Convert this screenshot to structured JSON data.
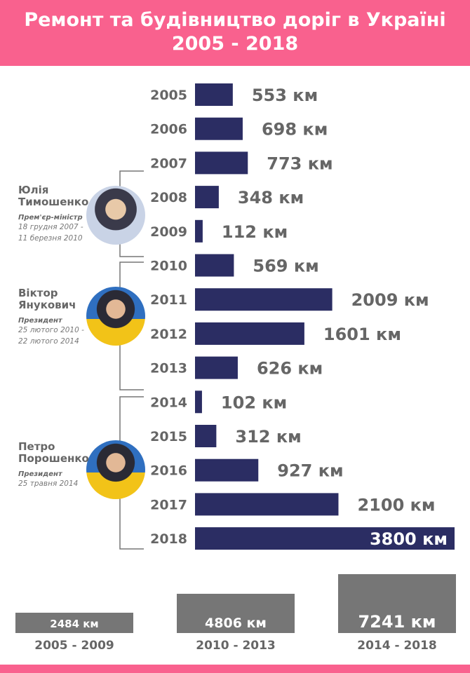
{
  "title": {
    "line1": "Ремонт та будівництво доріг в Україні",
    "line2": "2005 - 2018"
  },
  "unit": "км",
  "colors": {
    "bar": "#2b2d63",
    "header": "#f9618e",
    "summary": "#767676",
    "text": "#666666"
  },
  "chart_data": {
    "type": "bar",
    "orientation": "horizontal",
    "title": "Ремонт та будівництво доріг в Україні 2005 - 2018",
    "categories": [
      "2005",
      "2006",
      "2007",
      "2008",
      "2009",
      "2010",
      "2011",
      "2012",
      "2013",
      "2014",
      "2015",
      "2016",
      "2017",
      "2018"
    ],
    "values": [
      553,
      698,
      773,
      348,
      112,
      569,
      2009,
      1601,
      626,
      102,
      312,
      927,
      2100,
      3800
    ],
    "labels": [
      "553 км",
      "698 км",
      "773 км",
      "348 км",
      "112 км",
      "569 км",
      "2009 км",
      "1601 км",
      "626 км",
      "102 км",
      "312 км",
      "927 км",
      "2100 км",
      "3800 км"
    ],
    "xlim": [
      0,
      3800
    ],
    "summary": {
      "categories": [
        "2005 - 2009",
        "2010 - 2013",
        "2014 - 2018"
      ],
      "values": [
        2484,
        4806,
        7241
      ],
      "labels": [
        "2484 км",
        "4806 км",
        "7241 км"
      ]
    }
  },
  "people": [
    {
      "name1": "Юлія",
      "name2": "Тимошенко",
      "role": "Прем'єр-міністр",
      "date1": "18 грудня 2007 -",
      "date2": "11 березня 2010"
    },
    {
      "name1": "Віктор",
      "name2": "Янукович",
      "role": "Президент",
      "date1": "25 лютого 2010 -",
      "date2": "22 лютого 2014"
    },
    {
      "name1": "Петро",
      "name2": "Порошенко",
      "role": "Президент",
      "date1": "25 травня 2014"
    }
  ]
}
